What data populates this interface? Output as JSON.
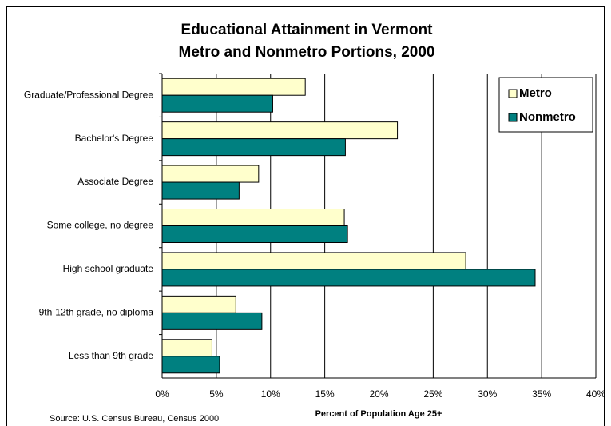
{
  "chart_data": {
    "type": "hbar",
    "title": "Educational Attainment in Vermont",
    "subtitle": "Metro and Nonmetro Portions, 2000",
    "x_label": "Percent of Population Age 25+",
    "source": "Source: U.S. Census Bureau, Census 2000",
    "categories": [
      "Graduate/Professional Degree",
      "Bachelor's Degree",
      "Associate Degree",
      "Some college, no degree",
      "High school graduate",
      "9th-12th grade, no diploma",
      "Less than 9th grade"
    ],
    "series": [
      {
        "name": "Metro",
        "color": "#ffffcc",
        "values": [
          13.2,
          21.7,
          8.9,
          16.8,
          28.0,
          6.8,
          4.6
        ]
      },
      {
        "name": "Nonmetro",
        "color": "#008080",
        "values": [
          10.2,
          16.9,
          7.1,
          17.1,
          34.4,
          9.2,
          5.3
        ]
      }
    ],
    "xlim": [
      0,
      40
    ],
    "xticks": [
      {
        "value": 0,
        "label": "0%"
      },
      {
        "value": 5,
        "label": "5%"
      },
      {
        "value": 10,
        "label": "10%"
      },
      {
        "value": 15,
        "label": "15%"
      },
      {
        "value": 20,
        "label": "20%"
      },
      {
        "value": 25,
        "label": "25%"
      },
      {
        "value": 30,
        "label": "30%"
      },
      {
        "value": 35,
        "label": "35%"
      },
      {
        "value": 40,
        "label": "40%"
      }
    ],
    "grid": true,
    "legend": "upper right"
  }
}
